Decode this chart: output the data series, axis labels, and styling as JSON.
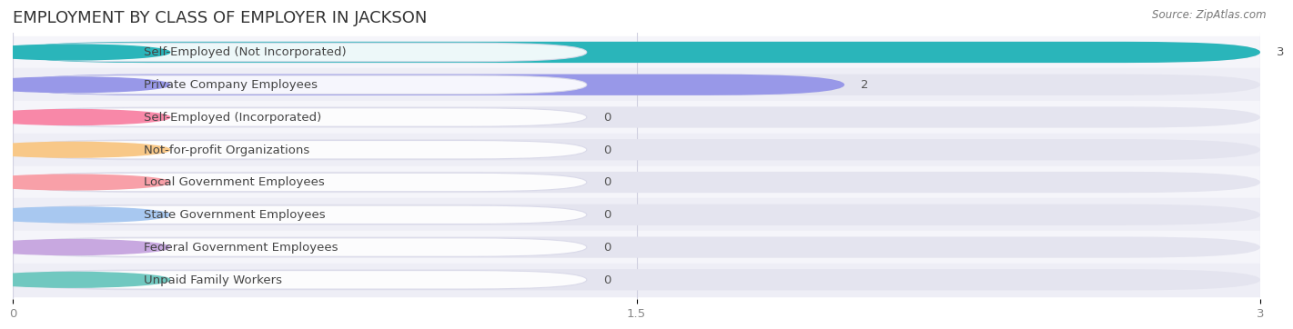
{
  "title": "EMPLOYMENT BY CLASS OF EMPLOYER IN JACKSON",
  "source": "Source: ZipAtlas.com",
  "categories": [
    "Self-Employed (Not Incorporated)",
    "Private Company Employees",
    "Self-Employed (Incorporated)",
    "Not-for-profit Organizations",
    "Local Government Employees",
    "State Government Employees",
    "Federal Government Employees",
    "Unpaid Family Workers"
  ],
  "values": [
    3,
    2,
    0,
    0,
    0,
    0,
    0,
    0
  ],
  "bar_colors": [
    "#2ab5ba",
    "#9898e8",
    "#f888a8",
    "#f8c888",
    "#f8a0a8",
    "#a8c8f0",
    "#c8a8e0",
    "#70c8c0"
  ],
  "xlim": [
    0,
    3
  ],
  "xticks": [
    0,
    1.5,
    3
  ],
  "title_fontsize": 13,
  "label_fontsize": 9.5,
  "value_fontsize": 9.5,
  "background_color": "#ffffff",
  "row_bg_even": "#f5f5fa",
  "row_bg_odd": "#eeeef6",
  "bar_bg_color": "#e4e4ef",
  "bar_height": 0.65,
  "label_box_color": "#ffffff",
  "label_text_color": "#444444",
  "value_text_color": "#555555",
  "grid_color": "#d0d0e0",
  "tick_color": "#888888"
}
